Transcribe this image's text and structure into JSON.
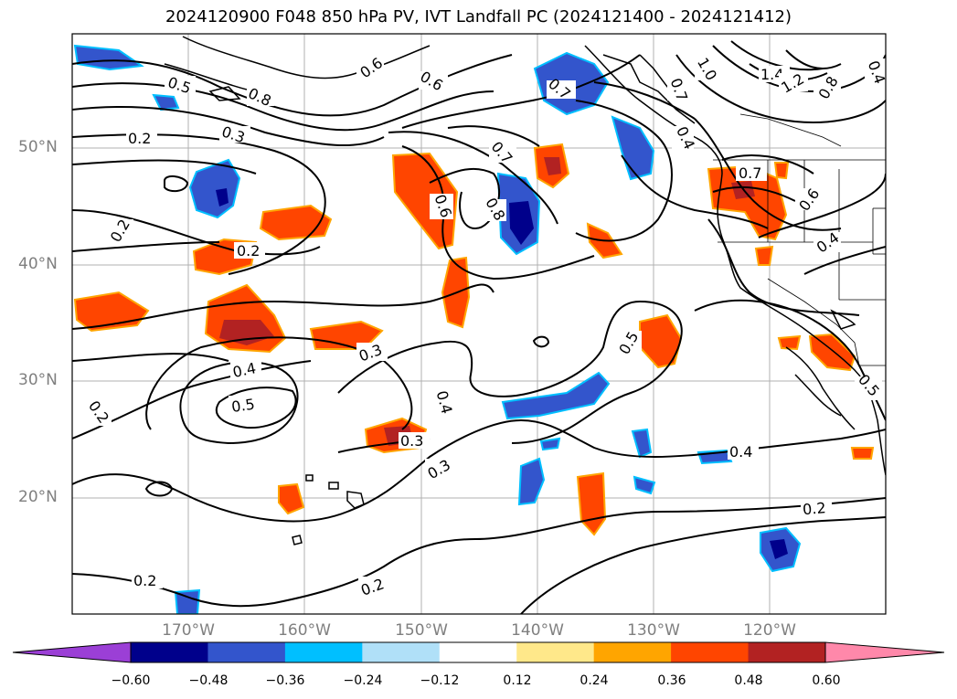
{
  "title": "2024120900 F048 850 hPa PV, IVT Landfall PC (2024121400 - 2024121412)",
  "lat_labels": [
    "50°N",
    "40°N",
    "30°N",
    "20°N"
  ],
  "lon_labels": [
    "170°W",
    "160°W",
    "150°W",
    "140°W",
    "130°W",
    "120°W"
  ],
  "colorbar": {
    "ticks": [
      "−0.60",
      "−0.48",
      "−0.36",
      "−0.24",
      "−0.12",
      "0.12",
      "0.24",
      "0.36",
      "0.48",
      "0.60"
    ],
    "colors": [
      "#9b3fd6",
      "#00008b",
      "#3355cc",
      "#00bfff",
      "#b0e0f8",
      "#ffffff",
      "#ffe88a",
      "#ffa500",
      "#ff4500",
      "#b22222",
      "#ff88aa"
    ]
  },
  "contour_labels": {
    "c1": "0.5",
    "c2": "0.8",
    "c3": "0.6",
    "c4": "0.3",
    "c5": "0.2",
    "c6": "0.6",
    "c7": "0.7",
    "c8": "0.7",
    "c9": "0.7",
    "c10": "1.0",
    "c11": "1.4",
    "c12": "1.2",
    "c13": "0.8",
    "c14": "0.4",
    "c15": "0.4",
    "c16": "0.7",
    "c17": "0.6",
    "c18": "0.8",
    "c19": "0.2",
    "c20": "0.2",
    "c21": "0.6",
    "c22": "0.4",
    "c23": "0.3",
    "c24": "0.4",
    "c25": "0.5",
    "c26": "0.2",
    "c27": "0.4",
    "c28": "0.3",
    "c29": "0.3",
    "c30": "0.5",
    "c31": "0.5",
    "c32": "0.4",
    "c33": "0.2",
    "c34": "0.2",
    "c35": "0.2"
  }
}
